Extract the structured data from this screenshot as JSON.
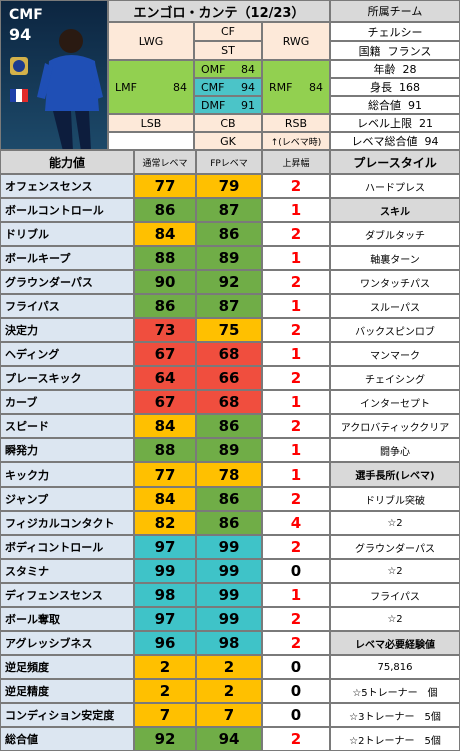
{
  "title": "エンゴロ・カンテ（12/23）",
  "card": {
    "position": "CMF",
    "rating": "94"
  },
  "positions": {
    "LWG": "LWG",
    "CF": "CF",
    "ST": "ST",
    "RWG": "RWG",
    "LMF": "LMF",
    "LMF_val": "84",
    "OMF": "OMF",
    "OMF_val": "84",
    "CMF": "CMF",
    "CMF_val": "94",
    "DMF": "DMF",
    "DMF_val": "91",
    "RMF": "RMF",
    "RMF_val": "84",
    "LSB": "LSB",
    "CB": "CB",
    "RSB": "RSB",
    "GK": "GK",
    "at_max": "↑(レベマ時)"
  },
  "info": {
    "team_label": "所属チーム",
    "team": "チェルシー",
    "nationality_label": "国籍",
    "nationality": "フランス",
    "age_label": "年齢",
    "age": "28",
    "height_label": "身長",
    "height": "168",
    "overall_label": "総合値",
    "overall": "91",
    "level_cap_label": "レベル上限",
    "level_cap": "21",
    "max_overall_label": "レベマ総合値",
    "max_overall": "94"
  },
  "headers": {
    "ability": "能力値",
    "normal_max": "通常レベマ",
    "fp_max": "FPレベマ",
    "rise": "上昇幅",
    "playstyle": "プレースタイル"
  },
  "stats": [
    {
      "name": "オフェンスセンス",
      "normal": "77",
      "fp": "79",
      "rise": "2"
    },
    {
      "name": "ボールコントロール",
      "normal": "86",
      "fp": "87",
      "rise": "1"
    },
    {
      "name": "ドリブル",
      "normal": "84",
      "fp": "86",
      "rise": "2"
    },
    {
      "name": "ボールキープ",
      "normal": "88",
      "fp": "89",
      "rise": "1"
    },
    {
      "name": "グラウンダーパス",
      "normal": "90",
      "fp": "92",
      "rise": "2"
    },
    {
      "name": "フライパス",
      "normal": "86",
      "fp": "87",
      "rise": "1"
    },
    {
      "name": "決定力",
      "normal": "73",
      "fp": "75",
      "rise": "2"
    },
    {
      "name": "ヘディング",
      "normal": "67",
      "fp": "68",
      "rise": "1"
    },
    {
      "name": "プレースキック",
      "normal": "64",
      "fp": "66",
      "rise": "2"
    },
    {
      "name": "カーブ",
      "normal": "67",
      "fp": "68",
      "rise": "1"
    },
    {
      "name": "スピード",
      "normal": "84",
      "fp": "86",
      "rise": "2"
    },
    {
      "name": "瞬発力",
      "normal": "88",
      "fp": "89",
      "rise": "1"
    },
    {
      "name": "キック力",
      "normal": "77",
      "fp": "78",
      "rise": "1"
    },
    {
      "name": "ジャンプ",
      "normal": "84",
      "fp": "86",
      "rise": "2"
    },
    {
      "name": "フィジカルコンタクト",
      "normal": "82",
      "fp": "86",
      "rise": "4"
    },
    {
      "name": "ボディコントロール",
      "normal": "97",
      "fp": "99",
      "rise": "2"
    },
    {
      "name": "スタミナ",
      "normal": "99",
      "fp": "99",
      "rise": "0"
    },
    {
      "name": "ディフェンスセンス",
      "normal": "98",
      "fp": "99",
      "rise": "1"
    },
    {
      "name": "ボール奪取",
      "normal": "97",
      "fp": "99",
      "rise": "2"
    },
    {
      "name": "アグレッシブネス",
      "normal": "96",
      "fp": "98",
      "rise": "2"
    },
    {
      "name": "逆足頻度",
      "normal": "2",
      "fp": "2",
      "rise": "0"
    },
    {
      "name": "逆足精度",
      "normal": "2",
      "fp": "2",
      "rise": "0"
    },
    {
      "name": "コンディション安定度",
      "normal": "7",
      "fp": "7",
      "rise": "0"
    },
    {
      "name": "総合値",
      "normal": "92",
      "fp": "94",
      "rise": "2"
    }
  ],
  "right_col": [
    "ハードプレス",
    "スキル",
    "ダブルタッチ",
    "軸裏ターン",
    "ワンタッチパス",
    "スルーパス",
    "バックスピンロブ",
    "マンマーク",
    "チェイシング",
    "インターセプト",
    "アクロバティッククリア",
    "闘争心",
    "選手長所(レベマ)",
    "ドリブル突破",
    "☆2",
    "グラウンダーパス",
    "☆2",
    "フライパス",
    "☆2",
    "レベマ必要経験値",
    "75,816",
    "☆5トレーナー　個",
    "☆3トレーナー　5個",
    "☆2トレーナー　5個"
  ],
  "colors": {
    "yellow": "#ffc000",
    "green": "#70ad47",
    "red": "#f04e3e",
    "cyan": "#3fc3c8",
    "label_blue": "#dce6f1",
    "rise_red": "#ff0000",
    "header_grey": "#d9d9d9"
  }
}
